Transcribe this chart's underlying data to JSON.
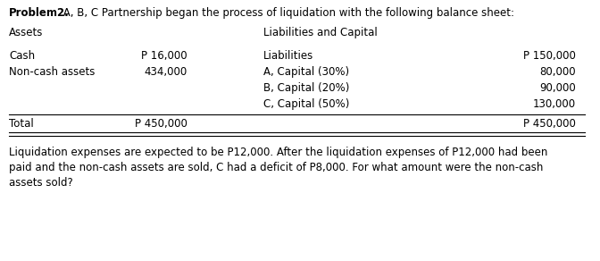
{
  "title_bold": "Problem2.",
  "title_rest": " A, B, C Partnership began the process of liquidation with the following balance sheet:",
  "col_header_left": "Assets",
  "col_header_right": "Liabilities and Capital",
  "assets": [
    {
      "label": "Cash",
      "value": "P 16,000"
    },
    {
      "label": "Non-cash assets",
      "value": "434,000"
    }
  ],
  "liabilities": [
    {
      "label": "Liabilities",
      "value": "P 150,000"
    },
    {
      "label": "A, Capital (30%)",
      "value": "80,000"
    },
    {
      "label": "B, Capital (20%)",
      "value": "90,000"
    },
    {
      "label": "C, Capital (50%)",
      "value": "130,000"
    }
  ],
  "total_label": "Total",
  "total_left_value": "P 450,000",
  "total_right_value": "P 450,000",
  "footer_text": "Liquidation expenses are expected to be P12,000. After the liquidation expenses of P12,000 had been\npaid and the non-cash assets are sold, C had a deficit of P8,000. For what amount were the non-cash\nassets sold?",
  "bg_color": "#ffffff",
  "text_color": "#000000",
  "font_size": 8.5
}
